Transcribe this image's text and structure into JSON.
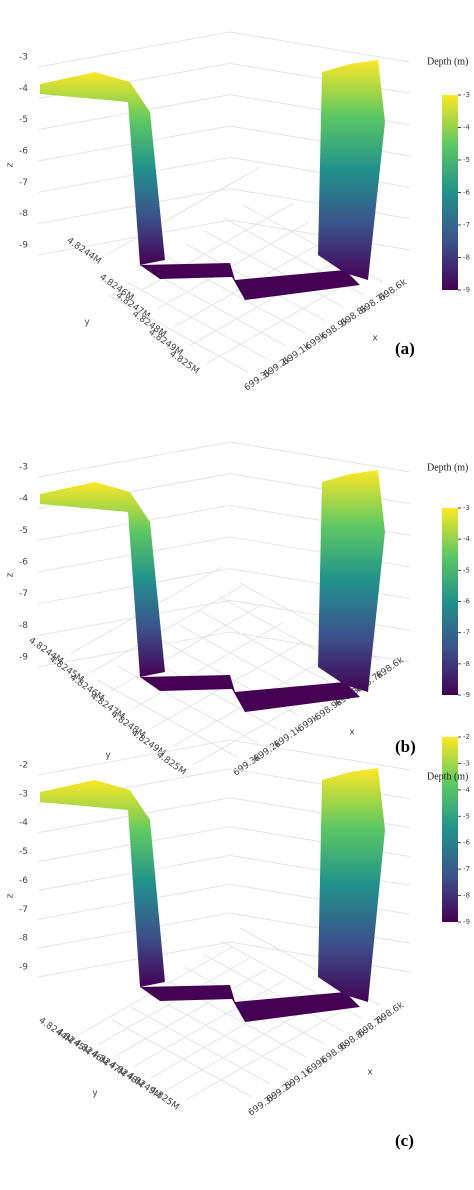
{
  "chart_data": [
    {
      "type": "surface3d",
      "panel_label": "(a)",
      "colorbar_title": "Depth (m)",
      "x_label": "x",
      "y_label": "y",
      "z_label": "z",
      "xlim": [
        698600,
        699300
      ],
      "xticks": [
        {
          "value": 698600,
          "label": "698.6k"
        },
        {
          "value": 698700,
          "label": "698.7k"
        },
        {
          "value": 698800,
          "label": "698.8k"
        },
        {
          "value": 698900,
          "label": "698.9k"
        },
        {
          "value": 699000,
          "label": "699k"
        },
        {
          "value": 699100,
          "label": "699.1k"
        },
        {
          "value": 699200,
          "label": "699.2k"
        },
        {
          "value": 699300,
          "label": "699.3k"
        }
      ],
      "ylim": [
        4824400,
        4825000
      ],
      "yticks": [
        {
          "value": 4824400,
          "label": "4.8244M"
        },
        {
          "value": 4824600,
          "label": "4.8246M"
        },
        {
          "value": 4824700,
          "label": "4.8247M"
        },
        {
          "value": 4824800,
          "label": "4.8248M"
        },
        {
          "value": 4824900,
          "label": "4.8249M"
        },
        {
          "value": 4825000,
          "label": "4.825M"
        }
      ],
      "zlim": [
        -9,
        -3
      ],
      "zticks": [
        -3,
        -4,
        -5,
        -6,
        -7,
        -8,
        -9
      ],
      "colorbar_lim": [
        -9,
        -3
      ],
      "colorbar_ticks": [
        -3,
        -4,
        -5,
        -6,
        -7,
        -8,
        -9
      ]
    },
    {
      "type": "surface3d",
      "panel_label": "(b)",
      "colorbar_title": "Depth (m)",
      "x_label": "x",
      "y_label": "y",
      "z_label": "z",
      "xlim": [
        698600,
        699300
      ],
      "xticks": [
        {
          "value": 698600,
          "label": "698.6k"
        },
        {
          "value": 698700,
          "label": "698.7k"
        },
        {
          "value": 698800,
          "label": "698.8k"
        },
        {
          "value": 698900,
          "label": "698.9k"
        },
        {
          "value": 699000,
          "label": "699k"
        },
        {
          "value": 699100,
          "label": "699.1k"
        },
        {
          "value": 699200,
          "label": "699.2k"
        },
        {
          "value": 699300,
          "label": "699.3k"
        }
      ],
      "ylim": [
        4824400,
        4825000
      ],
      "yticks": [
        {
          "value": 4824400,
          "label": "4.8244M"
        },
        {
          "value": 4824500,
          "label": "4.8245M"
        },
        {
          "value": 4824600,
          "label": "4.8246M"
        },
        {
          "value": 4824700,
          "label": "4.8247M"
        },
        {
          "value": 4824800,
          "label": "4.8248M"
        },
        {
          "value": 4824900,
          "label": "4.8249M"
        },
        {
          "value": 4825000,
          "label": "4.825M"
        }
      ],
      "zlim": [
        -9,
        -3
      ],
      "zticks": [
        -3,
        -4,
        -5,
        -6,
        -7,
        -8,
        -9
      ],
      "colorbar_lim": [
        -9,
        -3
      ],
      "colorbar_ticks": [
        -3,
        -4,
        -5,
        -6,
        -7,
        -8,
        -9
      ]
    },
    {
      "type": "surface3d",
      "panel_label": "(c)",
      "colorbar_title": "Depth (m)",
      "x_label": "x",
      "y_label": "y",
      "z_label": "z",
      "xlim": [
        698600,
        699300
      ],
      "xticks": [
        {
          "value": 698600,
          "label": "698.6k"
        },
        {
          "value": 698700,
          "label": "698.7k"
        },
        {
          "value": 698800,
          "label": "698.8k"
        },
        {
          "value": 698900,
          "label": "698.9k"
        },
        {
          "value": 699000,
          "label": "699k"
        },
        {
          "value": 699100,
          "label": "699.1k"
        },
        {
          "value": 699200,
          "label": "699.2k"
        },
        {
          "value": 699300,
          "label": "699.3k"
        }
      ],
      "ylim": [
        4824400,
        4825000
      ],
      "yticks": [
        {
          "value": 4824400,
          "label": "4.8244M"
        },
        {
          "value": 4824500,
          "label": "4.8245M"
        },
        {
          "value": 4824600,
          "label": "4.8246M"
        },
        {
          "value": 4824700,
          "label": "4.8247M"
        },
        {
          "value": 4824800,
          "label": "4.8248M"
        },
        {
          "value": 4824900,
          "label": "4.8249M"
        },
        {
          "value": 4825000,
          "label": "4.825M"
        }
      ],
      "zlim": [
        -9,
        -2
      ],
      "zticks": [
        -2,
        -3,
        -4,
        -5,
        -6,
        -7,
        -8,
        -9
      ],
      "colorbar_lim": [
        -9,
        -2
      ],
      "colorbar_ticks": [
        -2,
        -3,
        -4,
        -5,
        -6,
        -7,
        -8,
        -9
      ]
    }
  ]
}
